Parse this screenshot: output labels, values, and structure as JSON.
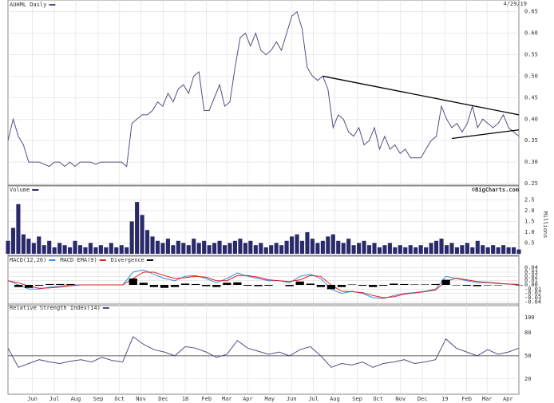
{
  "date_label": "4/29/19",
  "chart_data": [
    {
      "type": "line",
      "xlim": [
        0,
        99
      ],
      "ylim": [
        0.25,
        0.655
      ],
      "grid": true,
      "yticks": [
        0.25,
        {
          "value": 0.3,
          "label": "0.30"
        },
        0.35,
        {
          "value": 0.4,
          "label": "0.40"
        },
        0.45,
        {
          "value": 0.5,
          "label": "0.50"
        },
        0.55,
        {
          "value": 0.6,
          "label": "0.60"
        },
        0.65
      ],
      "series": [
        {
          "name": "AUHML Daily",
          "color": "#505080",
          "values": [
            0.35,
            0.4,
            0.36,
            0.34,
            0.3,
            0.3,
            0.3,
            0.295,
            0.29,
            0.3,
            0.3,
            0.29,
            0.3,
            0.29,
            0.3,
            0.3,
            0.3,
            0.295,
            0.3,
            0.3,
            0.3,
            0.3,
            0.3,
            0.29,
            0.39,
            0.4,
            0.41,
            0.41,
            0.42,
            0.44,
            0.43,
            0.46,
            0.44,
            0.47,
            0.48,
            0.46,
            0.5,
            0.51,
            0.42,
            0.42,
            0.45,
            0.48,
            0.43,
            0.44,
            0.52,
            0.59,
            0.6,
            0.57,
            0.6,
            0.56,
            0.55,
            0.56,
            0.58,
            0.56,
            0.6,
            0.64,
            0.65,
            0.61,
            0.52,
            0.5,
            0.49,
            0.5,
            0.47,
            0.38,
            0.41,
            0.4,
            0.37,
            0.36,
            0.38,
            0.34,
            0.35,
            0.38,
            0.33,
            0.36,
            0.33,
            0.34,
            0.32,
            0.33,
            0.31,
            0.31,
            0.31,
            0.33,
            0.35,
            0.36,
            0.43,
            0.4,
            0.38,
            0.39,
            0.37,
            0.39,
            0.43,
            0.38,
            0.4,
            0.39,
            0.38,
            0.39,
            0.41,
            0.38,
            0.37,
            0.36
          ]
        }
      ],
      "trendlines": [
        {
          "x": [
            61,
            99
          ],
          "y": [
            0.5,
            0.41
          ]
        },
        {
          "x": [
            86,
            99
          ],
          "y": [
            0.355,
            0.375
          ]
        }
      ]
    },
    {
      "type": "bar",
      "xlim": [
        0,
        99
      ],
      "ylim": [
        0,
        2.7
      ],
      "grid": true,
      "ylabel": "Millions",
      "credit": "©BigCharts.com",
      "yticks": [
        0.5,
        {
          "value": 1,
          "label": "1.0"
        },
        1.5,
        {
          "value": 2,
          "label": "2.0"
        },
        2.5
      ],
      "series": [
        {
          "name": "Volume",
          "color": "#2a2a6a",
          "values": [
            0.6,
            1.2,
            2.3,
            0.9,
            0.7,
            0.5,
            0.8,
            0.4,
            0.6,
            0.3,
            0.5,
            0.4,
            0.3,
            0.6,
            0.4,
            0.3,
            0.5,
            0.3,
            0.4,
            0.3,
            0.5,
            0.3,
            0.4,
            0.3,
            1.5,
            2.4,
            1.8,
            1.1,
            0.8,
            0.6,
            0.5,
            0.7,
            0.4,
            0.6,
            0.5,
            0.4,
            0.7,
            0.5,
            0.6,
            0.4,
            0.5,
            0.6,
            0.4,
            0.5,
            0.6,
            0.7,
            0.5,
            0.6,
            0.4,
            0.5,
            0.3,
            0.4,
            0.5,
            0.4,
            0.6,
            0.8,
            0.9,
            0.6,
            1.0,
            0.7,
            0.5,
            0.6,
            0.8,
            0.9,
            0.6,
            0.5,
            0.7,
            0.4,
            0.5,
            0.6,
            0.4,
            0.5,
            0.3,
            0.4,
            0.5,
            0.3,
            0.4,
            0.3,
            0.4,
            0.3,
            0.4,
            0.3,
            0.5,
            0.6,
            0.7,
            0.4,
            0.5,
            0.3,
            0.4,
            0.5,
            0.3,
            0.6,
            0.4,
            0.3,
            0.4,
            0.3,
            0.4,
            0.3,
            0.3,
            0.2
          ]
        }
      ]
    },
    {
      "type": "combo",
      "xlim": [
        0,
        49
      ],
      "ylim": [
        -0.045,
        0.045
      ],
      "grid": true,
      "yticks": [
        0.04,
        0.03,
        0.02,
        0.01,
        {
          "value": 0,
          "label": "0.00"
        },
        -0.01,
        -0.02,
        -0.03,
        -0.04
      ],
      "series": [
        {
          "name": "MACD(12,26)",
          "type": "line",
          "color": "#3a8fe0",
          "values": [
            0.01,
            0.0,
            -0.01,
            -0.01,
            -0.005,
            -0.003,
            0,
            0,
            0,
            0,
            0,
            0,
            0.03,
            0.035,
            0.025,
            0.015,
            0.01,
            0.02,
            0.022,
            0.015,
            0.005,
            0.015,
            0.028,
            0.02,
            0.015,
            0.01,
            0.01,
            0.005,
            0.02,
            0.025,
            0.015,
            -0.01,
            -0.02,
            -0.015,
            -0.02,
            -0.03,
            -0.032,
            -0.025,
            -0.02,
            -0.018,
            -0.015,
            -0.01,
            0.02,
            0.015,
            0.01,
            0.005,
            0.005,
            0.003,
            0.002,
            0.0
          ]
        },
        {
          "name": "MACD EMA(9)",
          "type": "line",
          "color": "#e02020",
          "values": [
            0.01,
            0.005,
            -0.003,
            -0.008,
            -0.007,
            -0.005,
            -0.002,
            0,
            0,
            0,
            0,
            0,
            0.015,
            0.03,
            0.03,
            0.022,
            0.015,
            0.017,
            0.02,
            0.018,
            0.01,
            0.01,
            0.022,
            0.022,
            0.018,
            0.012,
            0.01,
            0.008,
            0.012,
            0.022,
            0.02,
            0.0,
            -0.015,
            -0.016,
            -0.018,
            -0.025,
            -0.03,
            -0.028,
            -0.022,
            -0.019,
            -0.016,
            -0.012,
            0.008,
            0.016,
            0.012,
            0.008,
            0.006,
            0.004,
            0.002,
            0.001
          ]
        },
        {
          "name": "Divergence",
          "type": "bar",
          "color": "#000000",
          "values": [
            0,
            -0.005,
            -0.007,
            -0.002,
            0.002,
            0.002,
            0.002,
            0,
            0,
            0,
            0,
            0,
            0.015,
            0.005,
            -0.005,
            -0.007,
            -0.005,
            0.003,
            0.002,
            -0.003,
            -0.005,
            0.005,
            0.006,
            -0.002,
            -0.003,
            -0.002,
            0,
            -0.003,
            0.008,
            0.003,
            -0.005,
            -0.01,
            -0.005,
            0.001,
            -0.002,
            -0.005,
            -0.002,
            0.003,
            0.002,
            0.001,
            0.001,
            0.002,
            0.012,
            -0.001,
            -0.002,
            -0.003,
            -0.001,
            -0.001,
            0,
            -0.001
          ]
        }
      ]
    },
    {
      "type": "line",
      "xlim": [
        0,
        49
      ],
      "ylim": [
        0,
        105
      ],
      "grid": true,
      "reference_line": 50,
      "yticks": [
        20,
        50,
        80,
        100
      ],
      "xticks": [
        {
          "value": 2.35,
          "label": "Jun"
        },
        {
          "value": 4.45,
          "label": "Jul"
        },
        {
          "value": 6.5,
          "label": "Aug"
        },
        {
          "value": 8.65,
          "label": "Sep"
        },
        {
          "value": 10.7,
          "label": "Oct"
        },
        {
          "value": 12.75,
          "label": "Nov"
        },
        {
          "value": 14.9,
          "label": "Dec"
        },
        {
          "value": 17,
          "label": "18"
        },
        {
          "value": 19.05,
          "label": "Feb"
        },
        {
          "value": 21,
          "label": "Mar"
        },
        {
          "value": 23,
          "label": "Apr"
        },
        {
          "value": 25.1,
          "label": "May"
        },
        {
          "value": 27.2,
          "label": "Jun"
        },
        {
          "value": 29.3,
          "label": "Jul"
        },
        {
          "value": 31.35,
          "label": "Aug"
        },
        {
          "value": 33.5,
          "label": "Sep"
        },
        {
          "value": 35.5,
          "label": "Oct"
        },
        {
          "value": 37.65,
          "label": "Nov"
        },
        {
          "value": 39.75,
          "label": "Dec"
        },
        {
          "value": 41.9,
          "label": "19"
        },
        {
          "value": 44,
          "label": "Feb"
        },
        {
          "value": 45.95,
          "label": "Mar"
        },
        {
          "value": 47.95,
          "label": "Apr"
        }
      ],
      "series": [
        {
          "name": "Relative Strength Index(14)",
          "color": "#505080",
          "values": [
            60,
            35,
            40,
            45,
            42,
            40,
            43,
            45,
            42,
            48,
            44,
            42,
            75,
            65,
            58,
            55,
            50,
            62,
            60,
            55,
            48,
            52,
            70,
            60,
            56,
            52,
            55,
            50,
            58,
            62,
            50,
            35,
            40,
            38,
            42,
            35,
            40,
            42,
            45,
            40,
            42,
            45,
            72,
            60,
            55,
            50,
            58,
            52,
            55,
            60
          ]
        }
      ]
    }
  ]
}
